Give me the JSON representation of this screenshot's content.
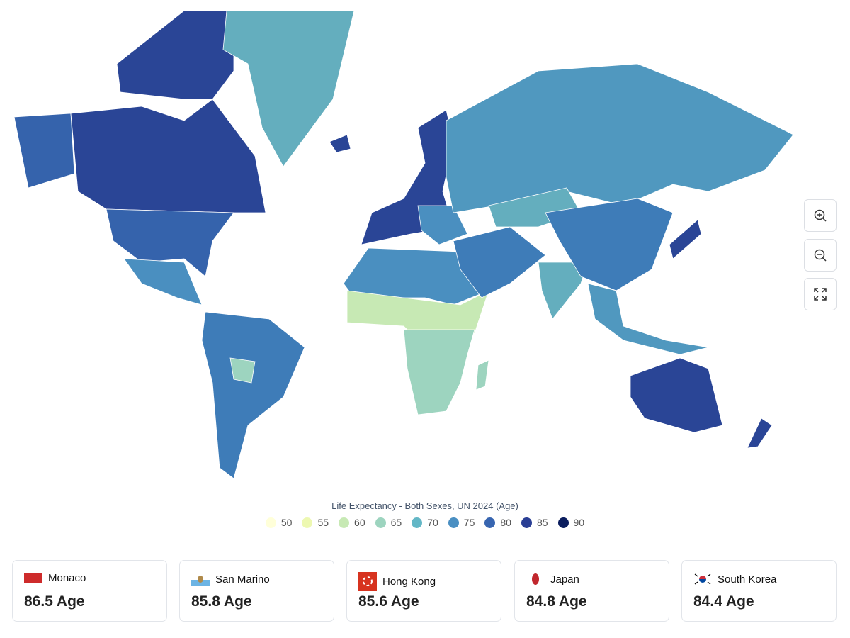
{
  "legend": {
    "title": "Life Expectancy - Both Sexes, UN 2024 (Age)",
    "items": [
      {
        "value": 50,
        "color": "#ffffd9"
      },
      {
        "value": 55,
        "color": "#edf8b1"
      },
      {
        "value": 60,
        "color": "#c7e9b4"
      },
      {
        "value": 65,
        "color": "#9dd4bf"
      },
      {
        "value": 70,
        "color": "#63b7c6"
      },
      {
        "value": 75,
        "color": "#4a8fc2"
      },
      {
        "value": 80,
        "color": "#3765b0"
      },
      {
        "value": 85,
        "color": "#2a3f95"
      },
      {
        "value": 90,
        "color": "#0b1d5e"
      }
    ]
  },
  "cards": [
    {
      "name": "Monaco",
      "value": "86.5 Age"
    },
    {
      "name": "San Marino",
      "value": "85.8 Age"
    },
    {
      "name": "Hong Kong",
      "value": "85.6 Age"
    },
    {
      "name": "Japan",
      "value": "84.8 Age"
    },
    {
      "name": "South Korea",
      "value": "84.4 Age"
    }
  ]
}
